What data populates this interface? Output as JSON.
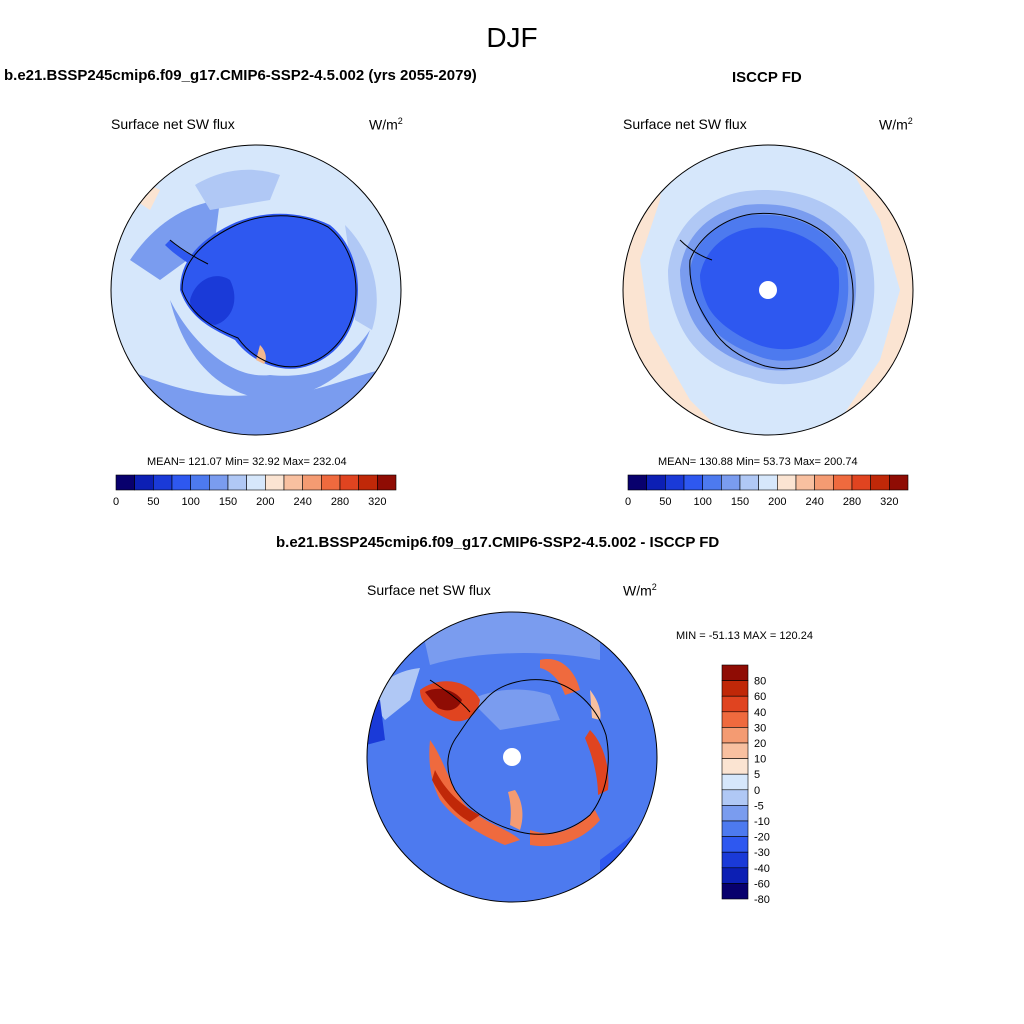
{
  "figure": {
    "title": "DJF",
    "panels": {
      "left": {
        "title": "b.e21.BSSP245cmip6.f09_g17.CMIP6-SSP2-4.5.002 (yrs 2055-2079)",
        "variable": "Surface net SW flux",
        "units_base": "W/m",
        "units_exp": "2",
        "stats": "MEAN= 121.07  Min=  32.92  Max= 232.04"
      },
      "right": {
        "title": "ISCCP FD",
        "variable": "Surface net SW flux",
        "units_base": "W/m",
        "units_exp": "2",
        "stats": "MEAN= 130.88  Min=  53.73  Max= 200.74"
      },
      "diff": {
        "title": "b.e21.BSSP245cmip6.f09_g17.CMIP6-SSP2-4.5.002 - ISCCP FD",
        "variable": "Surface net SW flux",
        "units_base": "W/m",
        "units_exp": "2",
        "stats": "MIN = -51.13 MAX = 120.24"
      }
    },
    "abs_colorbar": {
      "colors": [
        "#08006d",
        "#0c1fb4",
        "#1a3ad8",
        "#2e58f0",
        "#4d7aef",
        "#7a9cef",
        "#b0c8f5",
        "#d6e7fb",
        "#fbe4d2",
        "#f8c0a0",
        "#f49b72",
        "#ef6a3e",
        "#e04420",
        "#c02808",
        "#8f0c04"
      ],
      "tick_labels": [
        "0",
        "50",
        "100",
        "150",
        "200",
        "240",
        "280",
        "320"
      ]
    },
    "diff_colorbar": {
      "colors": [
        "#8f0c04",
        "#c02808",
        "#e04420",
        "#ef6a3e",
        "#f49b72",
        "#f8c0a0",
        "#fbe4d2",
        "#d6e7fb",
        "#b0c8f5",
        "#7a9cef",
        "#4d7aef",
        "#2e58f0",
        "#1a3ad8",
        "#0c1fb4",
        "#08006d"
      ],
      "tick_labels": [
        "80",
        "60",
        "40",
        "30",
        "20",
        "10",
        "5",
        "0",
        "-5",
        "-10",
        "-20",
        "-30",
        "-40",
        "-60",
        "-80"
      ]
    }
  }
}
